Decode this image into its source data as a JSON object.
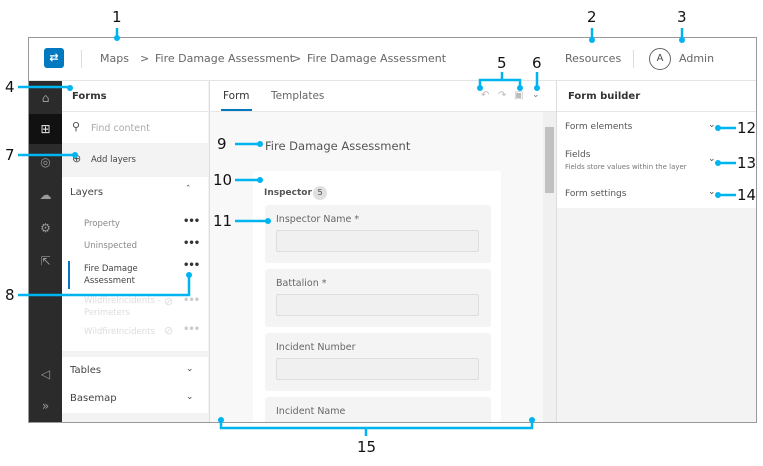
{
  "header": {
    "breadcrumbs": [
      "Maps",
      "Fire Damage Assessment",
      "Fire Damage Assessment"
    ],
    "separator": ">",
    "resources": "Resources",
    "avatar_initial": "A",
    "user": "Admin"
  },
  "forms_panel": {
    "title": "Forms",
    "search_placeholder": "Find content",
    "add_layers": "Add layers",
    "layers_title": "Layers",
    "layers": [
      {
        "name": "Property",
        "enabled": true
      },
      {
        "name": "Uninspected",
        "enabled": true
      },
      {
        "name": "Fire Damage Assessment",
        "enabled": true,
        "selected": true
      },
      {
        "name": "WildfireIncidents - Perimeters",
        "enabled": false
      },
      {
        "name": "WildfireIncidents",
        "enabled": false
      }
    ],
    "more": "•••",
    "tables": "Tables",
    "basemap": "Basemap"
  },
  "center": {
    "tabs": [
      "Form",
      "Templates"
    ],
    "active_tab": "Form",
    "form_title": "Fire Damage Assessment",
    "group": {
      "name": "Inspector",
      "count": "5"
    },
    "fields": [
      "Inspector Name *",
      "Battalion *",
      "Incident Number",
      "Incident Name"
    ]
  },
  "right_panel": {
    "title": "Form builder",
    "sections": [
      {
        "title": "Form elements"
      },
      {
        "title": "Fields",
        "subtitle": "Fields store values within the layer"
      },
      {
        "title": "Form settings"
      }
    ]
  },
  "callouts": [
    "1",
    "2",
    "3",
    "4",
    "5",
    "6",
    "7",
    "8",
    "9",
    "10",
    "11",
    "12",
    "13",
    "14",
    "15"
  ],
  "colors": {
    "accent": "#0079c1",
    "callout": "#00b4f0",
    "rail": "#2b2b2b"
  }
}
